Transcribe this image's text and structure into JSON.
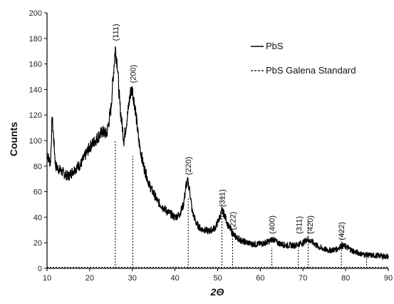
{
  "chart_data": {
    "type": "line",
    "xlabel": "2Θ",
    "ylabel": "Counts",
    "xlim": [
      10,
      90
    ],
    "ylim": [
      0,
      200
    ],
    "x_ticks": [
      10,
      20,
      30,
      40,
      50,
      60,
      70,
      80,
      90
    ],
    "y_ticks": [
      0,
      20,
      40,
      60,
      80,
      100,
      120,
      140,
      160,
      180,
      200
    ],
    "grid": false,
    "legend_position": "top-right",
    "legend": [
      {
        "label": "PbS",
        "style": "solid"
      },
      {
        "label": "PbS Galena Standard",
        "style": "dashed"
      }
    ],
    "series": [
      {
        "name": "PbS",
        "style": "solid",
        "x": [
          10,
          10.8,
          11.2,
          12,
          14,
          15,
          16,
          18,
          20,
          22,
          23,
          24,
          25,
          25.5,
          26,
          26.5,
          27,
          28,
          28.8,
          29.5,
          30,
          30.7,
          31.5,
          32.5,
          34,
          36,
          38,
          40,
          41,
          42,
          42.6,
          43,
          43.5,
          44,
          45,
          46,
          48,
          49.5,
          50.5,
          51,
          51.6,
          52.5,
          54,
          56,
          58,
          60,
          62,
          63,
          64,
          66,
          68,
          70,
          71,
          72,
          74,
          76,
          78,
          79,
          80,
          82,
          84,
          86,
          88,
          90
        ],
        "y": [
          90,
          82,
          118,
          80,
          74,
          72,
          76,
          82,
          95,
          103,
          107,
          105,
          125,
          150,
          172,
          160,
          130,
          100,
          118,
          137,
          140,
          125,
          100,
          82,
          65,
          52,
          45,
          40,
          42,
          50,
          65,
          68,
          60,
          45,
          35,
          31,
          29,
          32,
          40,
          45,
          42,
          33,
          25,
          21,
          19,
          19,
          21,
          23,
          20,
          18,
          18,
          20,
          23,
          21,
          16,
          14,
          15,
          18,
          17,
          13,
          11,
          10,
          10,
          9
        ]
      },
      {
        "name": "PbS Galena Standard",
        "style": "dashed",
        "x": [
          26.0,
          30.1,
          43.1,
          51.0,
          53.5,
          62.7,
          68.9,
          71.2,
          79.0,
          84.9
        ],
        "y": [
          100,
          88,
          55,
          58,
          25,
          16,
          16,
          38,
          30,
          13
        ]
      }
    ],
    "annotations": [
      {
        "text": "(111)",
        "x": 26.0,
        "y": 178
      },
      {
        "text": "(200)",
        "x": 30.1,
        "y": 145
      },
      {
        "text": "(220)",
        "x": 43.1,
        "y": 73
      },
      {
        "text": "(311)",
        "x": 51.0,
        "y": 48
      },
      {
        "text": "(222)",
        "x": 53.5,
        "y": 30
      },
      {
        "text": "(400)",
        "x": 62.7,
        "y": 27
      },
      {
        "text": "(311)",
        "x": 69.0,
        "y": 27
      },
      {
        "text": "(420)",
        "x": 71.6,
        "y": 27
      },
      {
        "text": "(422)",
        "x": 79.0,
        "y": 22
      }
    ]
  }
}
